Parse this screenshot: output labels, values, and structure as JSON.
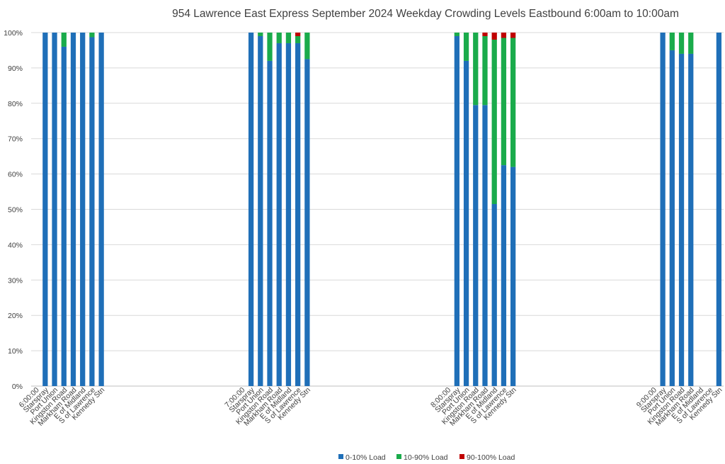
{
  "chart_data": {
    "type": "bar",
    "stacked": true,
    "title": "954 Lawrence East Express September 2024  Weekday Crowding Levels Eastbound 6:00am to 10:00am",
    "ylim": [
      0,
      100
    ],
    "yticks": [
      "0%",
      "10%",
      "20%",
      "30%",
      "40%",
      "50%",
      "60%",
      "70%",
      "80%",
      "90%",
      "100%"
    ],
    "grid": true,
    "legend_position": "bottom",
    "series": [
      {
        "name": "0-10% Load",
        "color": "#1f6fb8"
      },
      {
        "name": "10-90% Load",
        "color": "#1aab4b"
      },
      {
        "name": "90-100% Load",
        "color": "#c00000"
      }
    ],
    "groups": [
      {
        "label": "6:00:00",
        "bars": [
          {
            "category": "Starspray",
            "values": [
              100,
              0,
              0
            ]
          },
          {
            "category": "Port Union",
            "values": [
              100,
              0,
              0
            ]
          },
          {
            "category": "Kingston Road",
            "values": [
              96,
              4,
              0
            ]
          },
          {
            "category": "Markham Road",
            "values": [
              100,
              0,
              0
            ]
          },
          {
            "category": "E of Midland",
            "values": [
              100,
              0,
              0
            ]
          },
          {
            "category": "S of Lawrence",
            "values": [
              98.7,
              1.3,
              0
            ]
          },
          {
            "category": "Kennedy Stn",
            "values": [
              100,
              0,
              0
            ]
          }
        ]
      },
      {
        "label": "7:00:00",
        "bars": [
          {
            "category": "Starspray",
            "values": [
              100,
              0,
              0
            ]
          },
          {
            "category": "Port Union",
            "values": [
              99,
              1,
              0
            ]
          },
          {
            "category": "Kingston Road",
            "values": [
              92,
              8,
              0
            ]
          },
          {
            "category": "Markham Road",
            "values": [
              97,
              3,
              0
            ]
          },
          {
            "category": "E of Midland",
            "values": [
              97,
              3,
              0
            ]
          },
          {
            "category": "S of Lawrence",
            "values": [
              97,
              2,
              1
            ]
          },
          {
            "category": "Kennedy Stn",
            "values": [
              92.5,
              7.5,
              0
            ]
          }
        ]
      },
      {
        "label": "8:00:00",
        "bars": [
          {
            "category": "Starspray",
            "values": [
              99,
              1,
              0
            ]
          },
          {
            "category": "Port Union",
            "values": [
              92,
              8,
              0
            ]
          },
          {
            "category": "Kingston Road",
            "values": [
              79.5,
              20.5,
              0
            ]
          },
          {
            "category": "Markham Road",
            "values": [
              79.5,
              19.5,
              1
            ]
          },
          {
            "category": "E of Midland",
            "values": [
              51.5,
              46.5,
              2
            ]
          },
          {
            "category": "S of Lawrence",
            "values": [
              62.5,
              36,
              1.5
            ]
          },
          {
            "category": "Kennedy Stn",
            "values": [
              62,
              36.5,
              1.5
            ]
          }
        ]
      },
      {
        "label": "9:00:00",
        "bars": [
          {
            "category": "Starspray",
            "values": [
              100,
              0,
              0
            ]
          },
          {
            "category": "Port Union",
            "values": [
              95,
              5,
              0
            ]
          },
          {
            "category": "Kingston Road",
            "values": [
              94,
              6,
              0
            ]
          },
          {
            "category": "Markham Road",
            "values": [
              94,
              6,
              0
            ]
          },
          {
            "category": "E of Midland",
            "values": [
              null,
              null,
              null
            ]
          },
          {
            "category": "S of Lawrence",
            "values": [
              null,
              null,
              null
            ]
          },
          {
            "category": "Kennedy Stn",
            "values": [
              100,
              0,
              0
            ]
          }
        ]
      }
    ]
  }
}
